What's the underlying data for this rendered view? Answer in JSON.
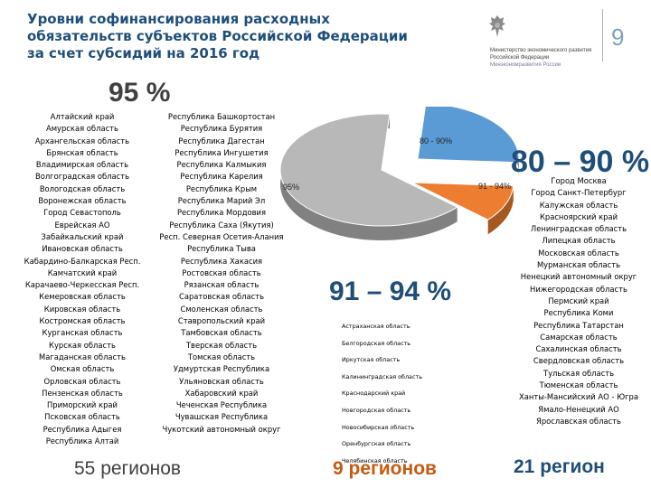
{
  "title": {
    "lines": [
      "Уровни софинансирования расходных",
      "обязательств субъектов Российской Федерации",
      "за счет субсидий на 2016 год"
    ]
  },
  "logo": {
    "icon": "double-headed-eagle-emblem",
    "lines": [
      "Министерство экономического развития",
      "Российской Федерации",
      "Минэкономразвития России"
    ]
  },
  "page_number": "9",
  "pie": {
    "labels": {
      "p95": "95%",
      "p8090": "80 - 90%",
      "p9194": "91 - 94%"
    },
    "colors": {
      "p95": "#b8b8b8",
      "p8090": "#5b9bd5",
      "p9194": "#ed7d31"
    }
  },
  "groups": {
    "g95": {
      "heading": "95 %",
      "count": "55 регионов",
      "col1": [
        "Алтайский край",
        "Амурская область",
        "Архангельская область",
        "Брянская область",
        "Владимирская область",
        "Волгоградская область",
        "Вологодская область",
        "Воронежская область",
        "Город Севастополь",
        "Еврейская АО",
        "Забайкальский край",
        "Ивановская область",
        "Кабардино-Балкарская Респ.",
        "Камчатский край",
        "Карачаево-Черкесская Респ.",
        "Кемеровская область",
        "Кировская область",
        "Костромская область",
        "Курганская область",
        "Курская область",
        "Магаданская область",
        "Омская область",
        "Орловская область",
        "Пензенская область",
        "Приморский край",
        "Псковская область",
        "Республика Адыгея",
        "Республика Алтай"
      ],
      "col2": [
        "Республика Башкортостан",
        "Республика Бурятия",
        "Республика Дагестан",
        "Республика Ингушетия",
        "Республика Калмыкия",
        "Республика Карелия",
        "Республика Крым",
        "Республика Марий Эл",
        "Республика Мордовия",
        "Республика Саха (Якутия)",
        "Респ. Северная Осетия-Алания",
        "Республика Тыва",
        "Республика Хакасия",
        "Ростовская область",
        "Рязанская область",
        "Саратовская область",
        "Смоленская область",
        "Ставропольский край",
        "Тамбовская область",
        "Тверская область",
        "Томская область",
        "Удмуртская Республика",
        "Ульяновская область",
        "Хабаровский край",
        "Чеченская Республика",
        "Чувашская Республика",
        "Чукотский автономный округ"
      ]
    },
    "g9194": {
      "heading": "91 – 94 %",
      "count": "9 регионов",
      "items": [
        "Астраханская область",
        "Белгородская область",
        "Иркутская область",
        "Калининградская область",
        "Краснодарский край",
        "Новгородская область",
        "Новосибирская область",
        "Оренбургская область",
        "Челябинская область"
      ]
    },
    "g8090": {
      "heading": "80 – 90 %",
      "count": "21 регион",
      "items": [
        "Город Москва",
        "Город Санкт-Петербург",
        "Калужская область",
        "Красноярский край",
        "Ленинградская область",
        "Липецкая область",
        "Московская область",
        "Мурманская область",
        "Ненецкий автономный округ",
        "Нижегородская область",
        "Пермский край",
        "Республика Коми",
        "Республика Татарстан",
        "Самарская область",
        "Сахалинская область",
        "Свердловская область",
        "Тульская область",
        "Тюменская область",
        "Ханты-Мансийский АО - Югра",
        "Ямало-Ненецкий АО",
        "Ярославская область"
      ]
    }
  },
  "chart_data": {
    "type": "pie",
    "categories": [
      "95%",
      "80 - 90%",
      "91 - 94%"
    ],
    "values": [
      55,
      21,
      9
    ],
    "title": "",
    "legend": "none"
  }
}
